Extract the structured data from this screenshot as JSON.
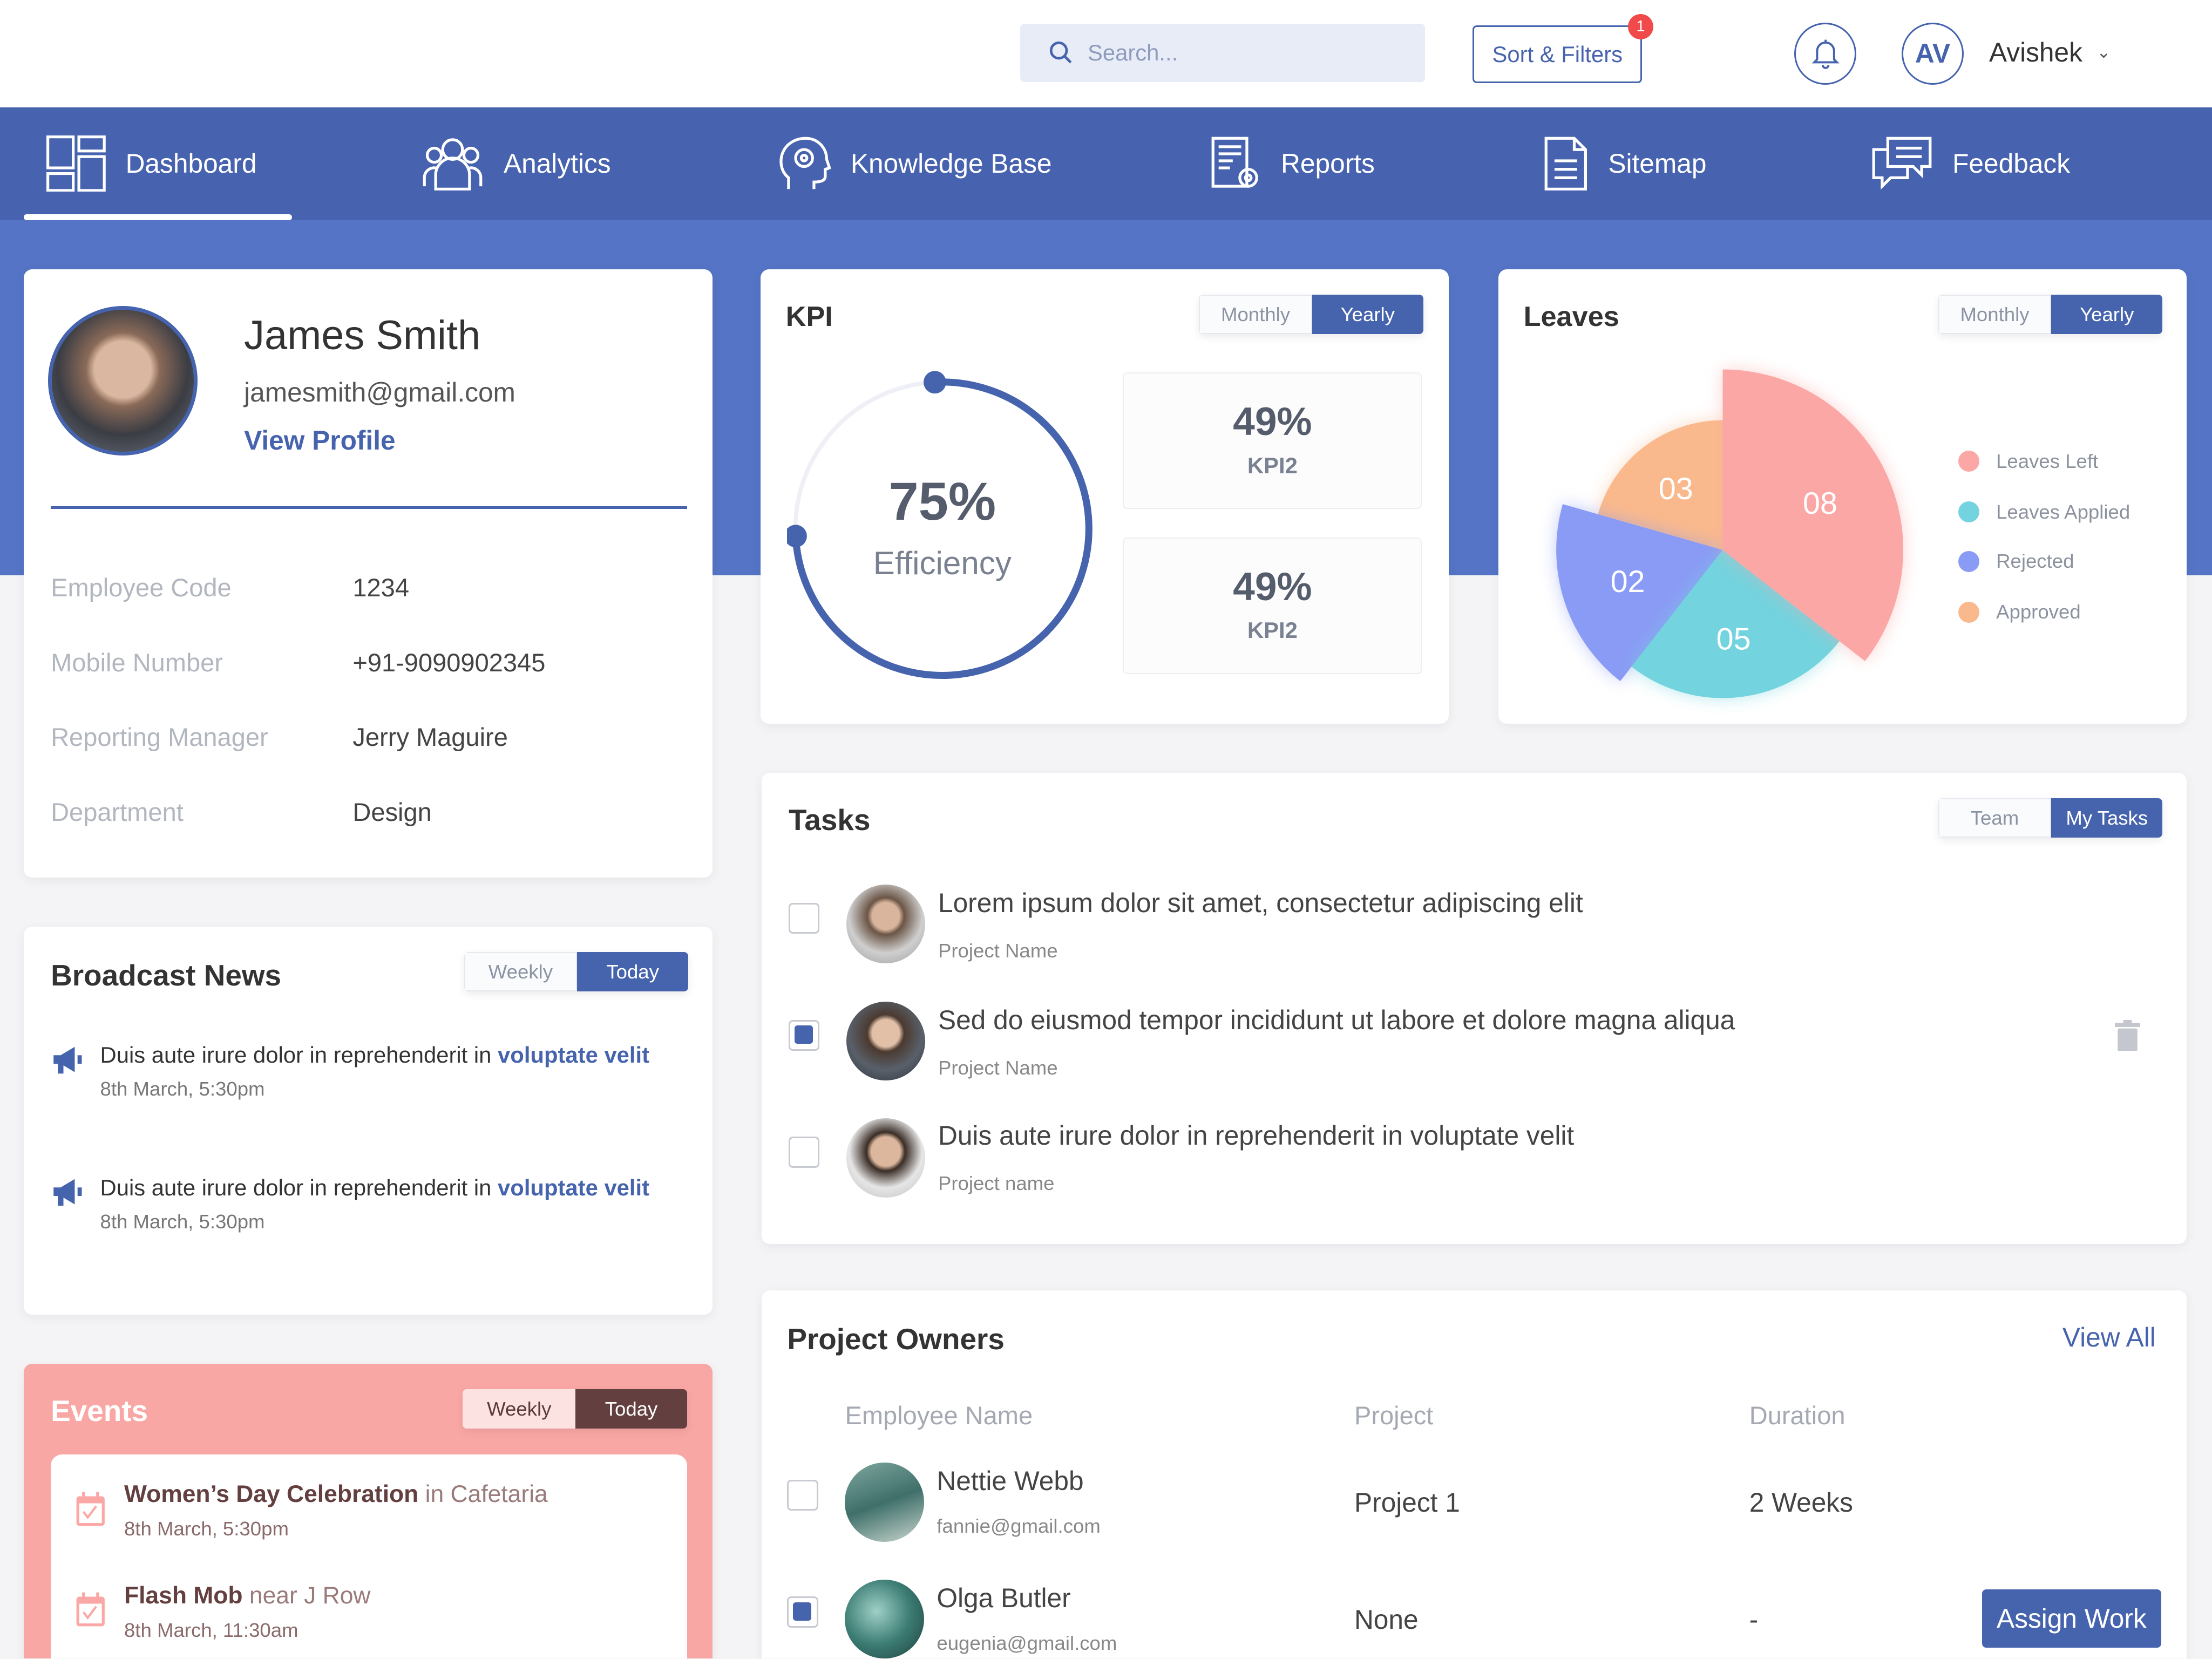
{
  "header": {
    "search_placeholder": "Search...",
    "sort_filters": "Sort & Filters",
    "filter_badge": "1",
    "avatar_initials": "AV",
    "user_name": "Avishek"
  },
  "nav": [
    {
      "label": "Dashboard",
      "icon": "dashboard-icon",
      "active": true
    },
    {
      "label": "Analytics",
      "icon": "users-group-icon"
    },
    {
      "label": "Knowledge Base",
      "icon": "brain-gear-icon"
    },
    {
      "label": "Reports",
      "icon": "report-icon"
    },
    {
      "label": "Sitemap",
      "icon": "document-icon"
    },
    {
      "label": "Feedback",
      "icon": "chat-bubbles-icon"
    }
  ],
  "profile": {
    "name": "James Smith",
    "email": "jamesmith@gmail.com",
    "view_profile": "View Profile",
    "fields": [
      {
        "label": "Employee Code",
        "value": "1234"
      },
      {
        "label": "Mobile Number",
        "value": "+91-9090902345"
      },
      {
        "label": "Reporting Manager",
        "value": "Jerry Maguire"
      },
      {
        "label": "Department",
        "value": "Design"
      }
    ]
  },
  "broadcast": {
    "title": "Broadcast News",
    "toggle": [
      "Weekly",
      "Today"
    ],
    "items": [
      {
        "text": "Duis aute irure dolor in reprehenderit in ",
        "highlight": "voluptate velit",
        "date": "8th March,  5:30pm"
      },
      {
        "text": "Duis aute irure dolor in reprehenderit in ",
        "highlight": "voluptate velit",
        "date": "8th March,  5:30pm"
      }
    ]
  },
  "events": {
    "title": "Events",
    "toggle": [
      "Weekly",
      "Today"
    ],
    "items": [
      {
        "name": "Women’s Day Celebration",
        "place": " in Cafetaria",
        "date": "8th March,  5:30pm"
      },
      {
        "name": "Flash Mob",
        "place": " near J Row",
        "date": "8th March,  11:30am"
      }
    ]
  },
  "kpi": {
    "title": "KPI",
    "toggle": [
      "Monthly",
      "Yearly"
    ],
    "efficiency_value": "75%",
    "efficiency_label": "Efficiency",
    "efficiency_fraction": 0.75,
    "boxes": [
      {
        "value": "49%",
        "label": "KPI2"
      },
      {
        "value": "49%",
        "label": "KPI2"
      }
    ]
  },
  "leaves": {
    "title": "Leaves",
    "toggle": [
      "Monthly",
      "Yearly"
    ]
  },
  "chart_data": {
    "type": "pie",
    "title": "Leaves",
    "legend_position": "right",
    "slices": [
      {
        "name": "Leaves Left",
        "value": 8,
        "label": "08",
        "color": "#fba7a5"
      },
      {
        "name": "Leaves Applied",
        "value": 5,
        "label": "05",
        "color": "#73d3de"
      },
      {
        "name": "Rejected",
        "value": 2,
        "label": "02",
        "color": "#8a9bf5"
      },
      {
        "name": "Approved",
        "value": 3,
        "label": "03",
        "color": "#fab98c"
      }
    ]
  },
  "tasks": {
    "title": "Tasks",
    "toggle": [
      "Team",
      "My Tasks"
    ],
    "items": [
      {
        "title": "Lorem ipsum dolor sit amet, consectetur adipiscing elit",
        "project": "Project Name",
        "checked": false
      },
      {
        "title": "Sed do eiusmod tempor incididunt ut labore et dolore magna aliqua",
        "project": "Project Name",
        "checked": true
      },
      {
        "title": "Duis aute irure dolor in reprehenderit in voluptate velit",
        "project": "Project name",
        "checked": false
      }
    ]
  },
  "owners": {
    "title": "Project Owners",
    "view_all": "View All",
    "columns": [
      "Employee Name",
      "Project",
      "Duration"
    ],
    "rows": [
      {
        "name": "Nettie Webb",
        "email": "fannie@gmail.com",
        "project": "Project 1",
        "duration": "2 Weeks",
        "checked": false
      },
      {
        "name": "Olga Butler",
        "email": "eugenia@gmail.com",
        "project": "None",
        "duration": "-",
        "checked": true,
        "action": "Assign Work"
      }
    ]
  },
  "colors": {
    "primary": "#4663ae",
    "band": "#5574c6",
    "events_bg": "#f9a7a4",
    "events_dark": "#643f3f"
  }
}
